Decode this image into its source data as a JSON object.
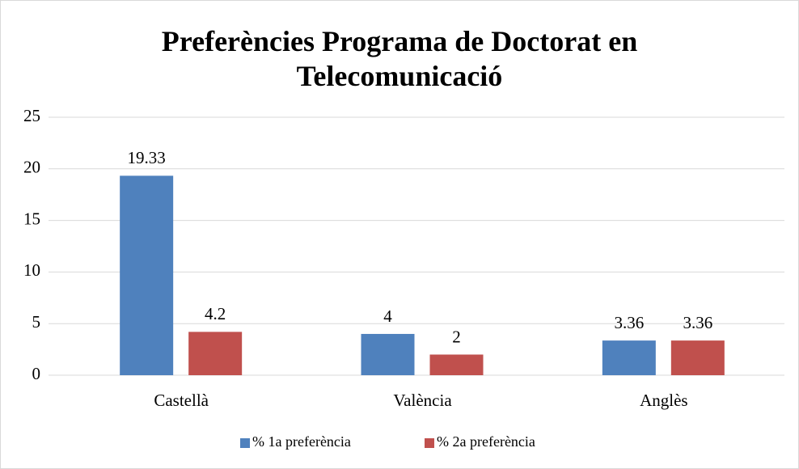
{
  "chart_data": {
    "type": "bar",
    "title": "Preferències Programa de Doctorat en Telecomunicació",
    "categories": [
      "Castellà",
      "València",
      "Anglès"
    ],
    "series": [
      {
        "name": "% 1a preferència",
        "color": "#4f81bd",
        "values": [
          19.33,
          4,
          3.36
        ]
      },
      {
        "name": "% 2a preferència",
        "color": "#c0504d",
        "values": [
          4.2,
          2,
          3.36
        ]
      }
    ],
    "ylim": [
      0,
      25
    ],
    "yticks": [
      0,
      5,
      10,
      15,
      20,
      25
    ],
    "grid": true,
    "legend": "bottom"
  }
}
